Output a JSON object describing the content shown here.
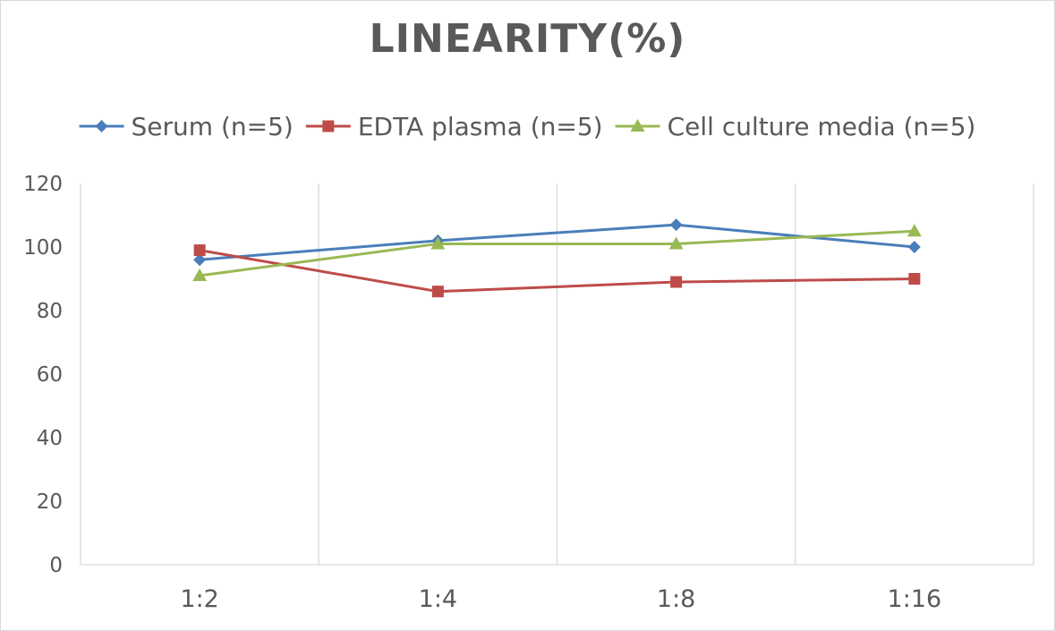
{
  "chart_data": {
    "type": "line",
    "title": "LINEARITY(%)",
    "categories": [
      "1:2",
      "1:4",
      "1:8",
      "1:16"
    ],
    "ylim": [
      0,
      120
    ],
    "yticks": [
      0,
      20,
      40,
      60,
      80,
      100,
      120
    ],
    "grid": "vertical",
    "legend_position": "top",
    "series": [
      {
        "name": "Serum (n=5)",
        "values": [
          96,
          102,
          107,
          100
        ],
        "color": "#4a7ebb",
        "marker": "diamond"
      },
      {
        "name": "EDTA plasma (n=5)",
        "values": [
          99,
          86,
          89,
          90
        ],
        "color": "#be4b48",
        "marker": "square"
      },
      {
        "name": "Cell culture media (n=5)",
        "values": [
          91,
          101,
          101,
          105
        ],
        "color": "#98b954",
        "marker": "triangle"
      }
    ]
  }
}
